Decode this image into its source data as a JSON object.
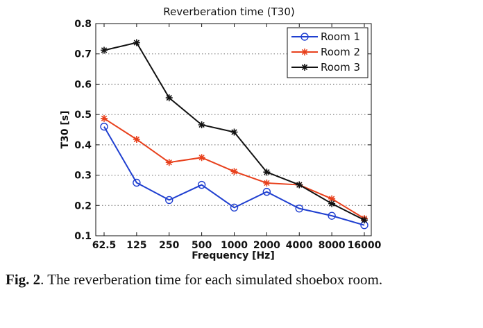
{
  "chart_data": {
    "type": "line",
    "title": "Reverberation time (T30)",
    "xlabel": "Frequency [Hz]",
    "ylabel": "T30 [s]",
    "categories": [
      "62.5",
      "125",
      "250",
      "500",
      "1000",
      "2000",
      "4000",
      "8000",
      "16000"
    ],
    "ylim": [
      0.1,
      0.8
    ],
    "yticks": [
      "0.1",
      "0.2",
      "0.3",
      "0.4",
      "0.5",
      "0.6",
      "0.7",
      "0.8"
    ],
    "grid": "horizontal-dotted",
    "legend_position": "top-right",
    "series": [
      {
        "name": "Room 1",
        "color": "#1f3fd0",
        "marker": "circle",
        "values": [
          0.46,
          0.275,
          0.218,
          0.268,
          0.193,
          0.245,
          0.19,
          0.166,
          0.135
        ]
      },
      {
        "name": "Room 2",
        "color": "#e8401c",
        "marker": "asterisk",
        "values": [
          0.487,
          0.418,
          0.342,
          0.358,
          0.312,
          0.274,
          0.268,
          0.222,
          0.157
        ]
      },
      {
        "name": "Room 3",
        "color": "#111111",
        "marker": "asterisk",
        "values": [
          0.712,
          0.737,
          0.555,
          0.466,
          0.442,
          0.31,
          0.268,
          0.206,
          0.152
        ]
      }
    ]
  },
  "caption": {
    "label": "Fig. 2",
    "text": ".  The reverberation time for each simulated shoebox room."
  }
}
